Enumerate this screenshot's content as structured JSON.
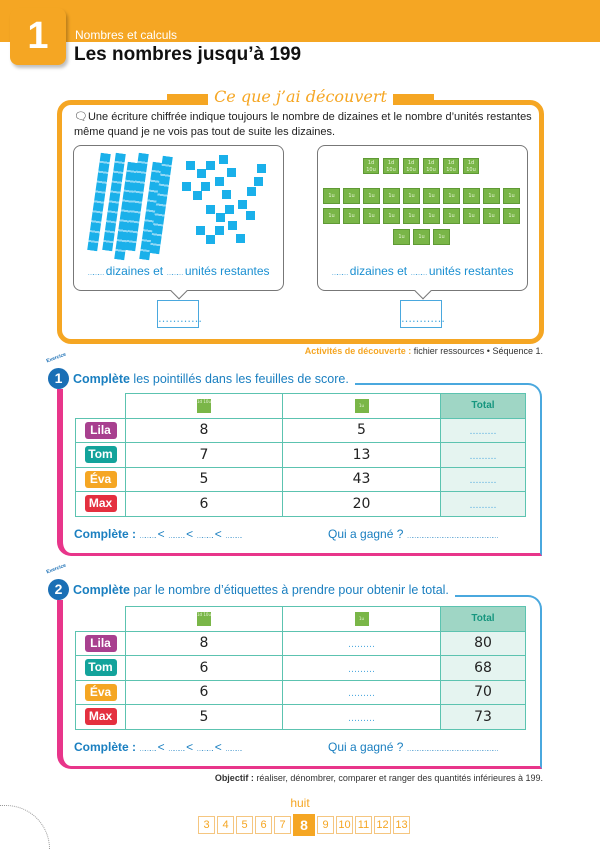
{
  "header": {
    "chapter_number": "1",
    "domain": "Nombres et calculs",
    "title": "Les nombres jusqu’à 199"
  },
  "discovery": {
    "title": "Ce que j’ai découvert",
    "text": "Une écriture chiffrée indique toujours le nombre de dizaines et le nombre d’unités restantes même quand je ne vois pas tout de suite les dizaines.",
    "panel_label": "……… dizaines et ……… unités restantes",
    "answer_blank": "…………",
    "left_panel": {
      "rods": 6,
      "cubes": 23
    },
    "right_panel": {
      "ten_tiles": 6,
      "unit_tiles": 23,
      "ten_tile_label_1": "1d",
      "ten_tile_label_2": "10u",
      "unit_tile_label": "1u"
    },
    "activities_label": "Activités de découverte :",
    "activities_text": " fichier ressources • Séquence 1."
  },
  "exercise1": {
    "label": "Exercice",
    "number": "1",
    "instruction_bold": "Complète",
    "instruction": " les pointillés dans les feuilles de score.",
    "total_header": "Total",
    "rows": [
      {
        "name": "Lila",
        "color": "#a8408f",
        "tens": "8",
        "units": "5",
        "total": "………"
      },
      {
        "name": "Tom",
        "color": "#13a39b",
        "tens": "7",
        "units": "13",
        "total": "………"
      },
      {
        "name": "Éva",
        "color": "#f5a623",
        "tens": "5",
        "units": "43",
        "total": "………"
      },
      {
        "name": "Max",
        "color": "#e4303f",
        "tens": "6",
        "units": "20",
        "total": "………"
      }
    ],
    "complete_label": "Complète :",
    "complete_blanks": " ……….. < ……….. < ……….. < ………..",
    "winner_question": "Qui a gagné ? ………………………………………………"
  },
  "exercise2": {
    "label": "Exercice",
    "number": "2",
    "instruction_bold": "Complète",
    "instruction": " par le nombre d’étiquettes à prendre pour obtenir le total.",
    "total_header": "Total",
    "rows": [
      {
        "name": "Lila",
        "color": "#a8408f",
        "tens": "8",
        "units": "………",
        "total": "80"
      },
      {
        "name": "Tom",
        "color": "#13a39b",
        "tens": "6",
        "units": "………",
        "total": "68"
      },
      {
        "name": "Éva",
        "color": "#f5a623",
        "tens": "6",
        "units": "………",
        "total": "70"
      },
      {
        "name": "Max",
        "color": "#e4303f",
        "tens": "5",
        "units": "………",
        "total": "73"
      }
    ],
    "complete_label": "Complète :",
    "complete_blanks": " ……….. < ……….. < ……….. < ………..",
    "winner_question": "Qui a gagné ? ………………………………………………"
  },
  "objective": {
    "label": "Objectif :",
    "text": " réaliser, dénombrer, comparer et ranger des quantités inférieures à 199."
  },
  "footer": {
    "page_word": "huit",
    "pages": [
      "3",
      "4",
      "5",
      "6",
      "7",
      "8",
      "9",
      "10",
      "11",
      "12",
      "13"
    ],
    "current_page": "8"
  },
  "colors": {
    "accent": "#f5a623",
    "blue": "#1a7fc0",
    "pink": "#e8358a",
    "teal": "#5cc3b0",
    "green_tile": "#7ab648"
  }
}
